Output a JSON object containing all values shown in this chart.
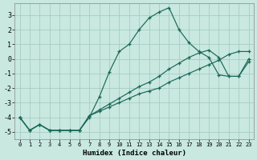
{
  "xlabel": "Humidex (Indice chaleur)",
  "bg_color": "#c8e8e0",
  "grid_color": "#a0c8c0",
  "line_color": "#1a6858",
  "xlim": [
    -0.5,
    23.5
  ],
  "ylim": [
    -5.5,
    3.8
  ],
  "xticks": [
    0,
    1,
    2,
    3,
    4,
    5,
    6,
    7,
    8,
    9,
    10,
    11,
    12,
    13,
    14,
    15,
    16,
    17,
    18,
    19,
    20,
    21,
    22,
    23
  ],
  "yticks": [
    -5,
    -4,
    -3,
    -2,
    -1,
    0,
    1,
    2,
    3
  ],
  "series": [
    {
      "x": [
        0,
        1,
        2,
        3,
        4,
        5,
        6,
        7,
        8,
        9,
        10,
        11,
        12,
        13,
        14,
        15,
        16,
        17,
        18,
        19,
        20,
        21,
        22,
        23
      ],
      "y": [
        -4.0,
        -4.9,
        -4.5,
        -4.9,
        -4.9,
        -4.9,
        -4.9,
        -4.0,
        -2.6,
        -0.9,
        0.5,
        1.0,
        2.0,
        2.8,
        3.2,
        3.5,
        2.0,
        1.1,
        0.5,
        0.1,
        -1.1,
        -1.2,
        -1.2,
        -0.2
      ]
    },
    {
      "x": [
        0,
        1,
        2,
        3,
        4,
        5,
        6,
        7,
        8,
        9,
        10,
        11,
        12,
        13,
        14,
        15,
        16,
        17,
        18,
        19,
        20,
        21,
        22,
        23
      ],
      "y": [
        -4.0,
        -4.9,
        -4.5,
        -4.9,
        -4.9,
        -4.9,
        -4.9,
        -3.9,
        -3.5,
        -3.1,
        -2.7,
        -2.3,
        -1.9,
        -1.6,
        -1.2,
        -0.7,
        -0.3,
        0.1,
        0.4,
        0.6,
        0.1,
        -1.2,
        -1.2,
        0.0
      ]
    },
    {
      "x": [
        0,
        1,
        2,
        3,
        4,
        5,
        6,
        7,
        8,
        9,
        10,
        11,
        12,
        13,
        14,
        15,
        16,
        17,
        18,
        19,
        20,
        21,
        22,
        23
      ],
      "y": [
        -4.0,
        -4.9,
        -4.5,
        -4.9,
        -4.9,
        -4.9,
        -4.9,
        -3.9,
        -3.6,
        -3.3,
        -3.0,
        -2.7,
        -2.4,
        -2.2,
        -2.0,
        -1.6,
        -1.3,
        -1.0,
        -0.7,
        -0.4,
        -0.1,
        0.3,
        0.5,
        0.5
      ]
    }
  ]
}
